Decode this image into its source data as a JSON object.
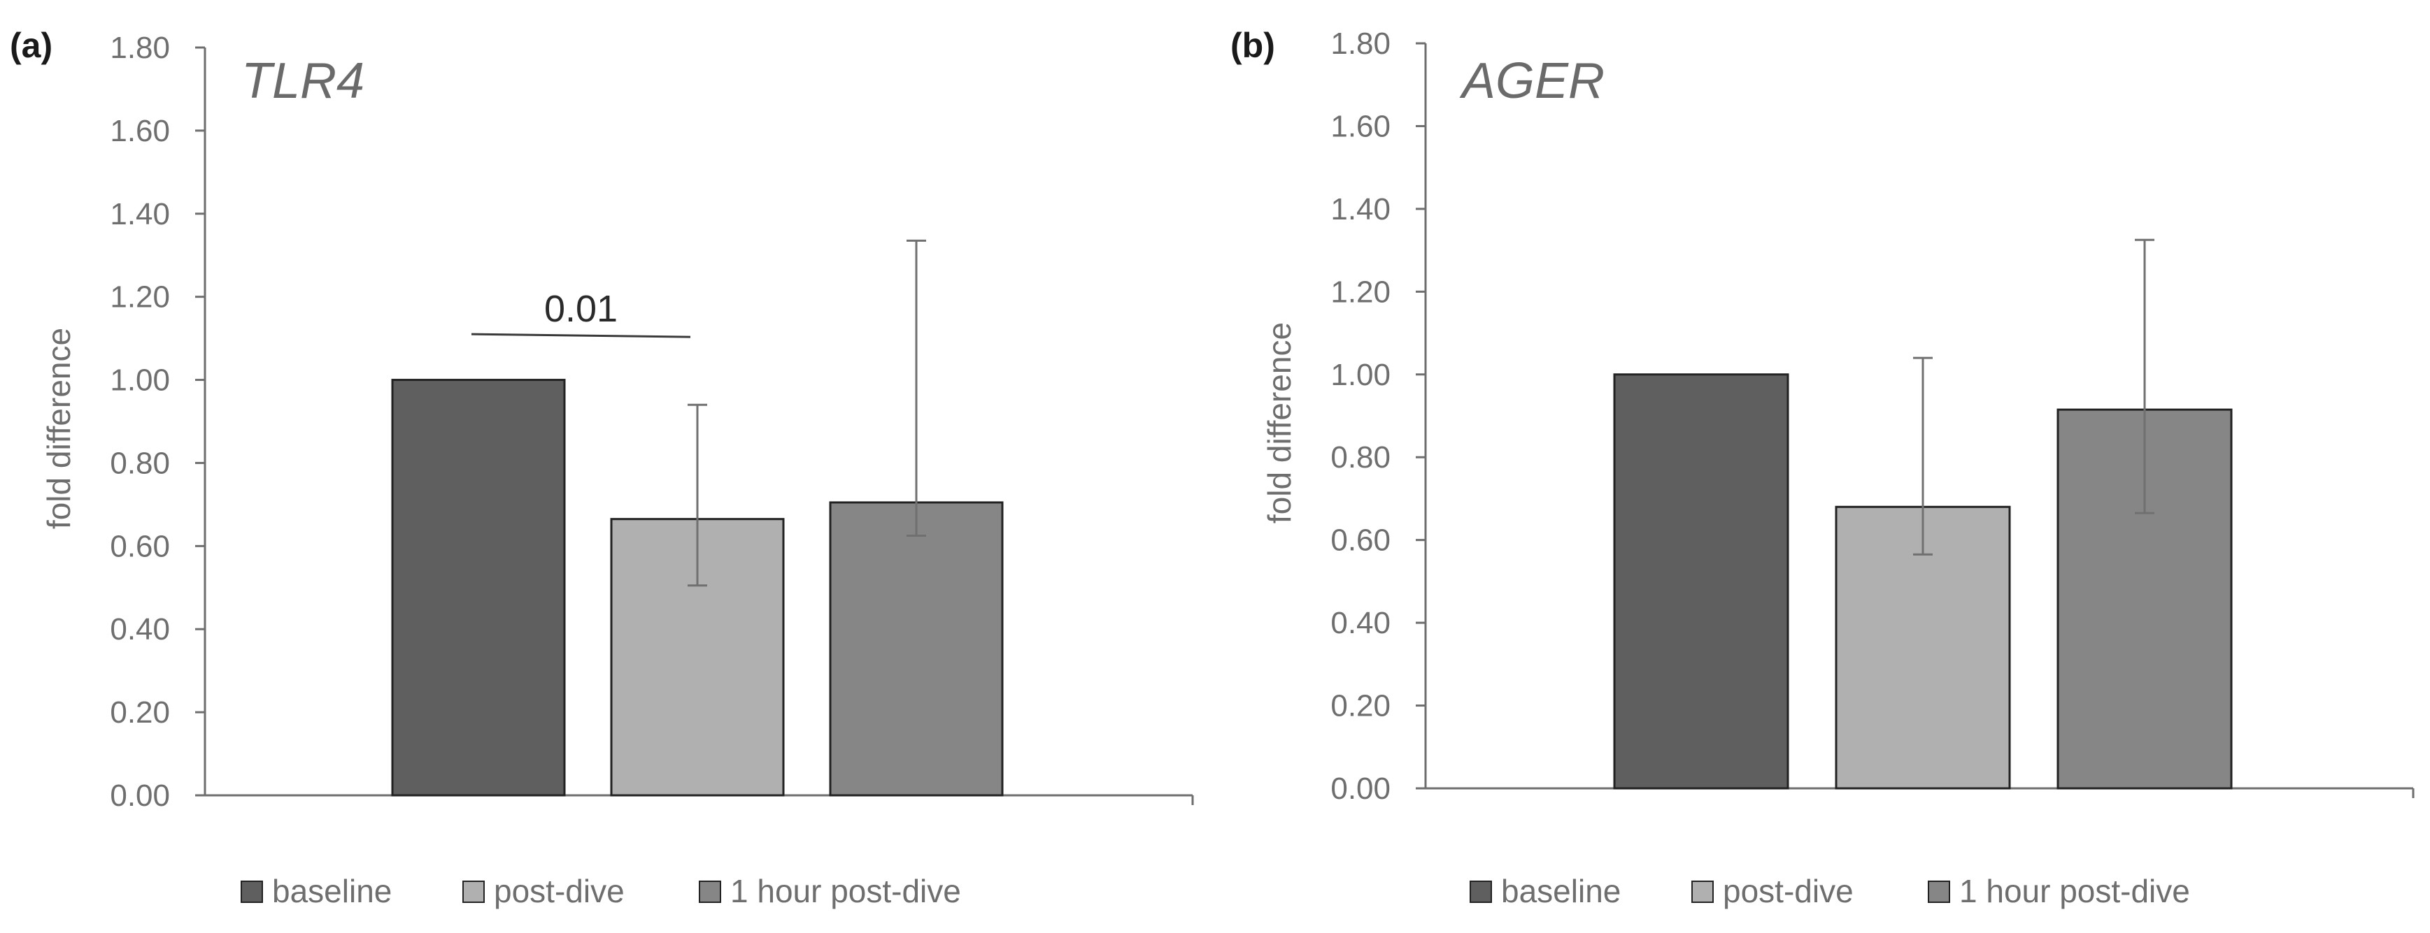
{
  "colors": {
    "series": [
      "#5f5f5f",
      "#b0b0b0",
      "#868686"
    ],
    "bar_stroke": "#222222",
    "axis": "#6e6e6e",
    "error_bar": "#707070"
  },
  "chart_data": [
    {
      "type": "bar",
      "panel_label": "(a)",
      "title": "TLR4",
      "xlabel": "",
      "ylabel": "fold difference",
      "ylim": [
        0,
        1.8
      ],
      "yticks": [
        "0.00",
        "0.20",
        "0.40",
        "0.60",
        "0.80",
        "1.00",
        "1.20",
        "1.40",
        "1.60",
        "1.80"
      ],
      "grid": false,
      "categories": [
        "baseline",
        "post-dive",
        "1 hour post-dive"
      ],
      "values": [
        1.0,
        0.665,
        0.705
      ],
      "error_low": [
        null,
        0.505,
        0.625
      ],
      "error_high": [
        null,
        0.94,
        1.335
      ],
      "annotations": [
        {
          "text": "0.01",
          "from": "baseline",
          "to": "post-dive",
          "y": 1.11
        }
      ],
      "legend": [
        "baseline",
        "post-dive",
        "1 hour post-dive"
      ],
      "legend_position": "bottom"
    },
    {
      "type": "bar",
      "panel_label": "(b)",
      "title": "AGER",
      "xlabel": "",
      "ylabel": "fold difference",
      "ylim": [
        0,
        1.8
      ],
      "yticks": [
        "0.00",
        "0.20",
        "0.40",
        "0.60",
        "0.80",
        "1.00",
        "1.20",
        "1.40",
        "1.60",
        "1.80"
      ],
      "grid": false,
      "categories": [
        "baseline",
        "post-dive",
        "1 hour post-dive"
      ],
      "values": [
        1.0,
        0.68,
        0.915
      ],
      "error_low": [
        null,
        0.565,
        0.665
      ],
      "error_high": [
        null,
        1.04,
        1.325
      ],
      "annotations": [],
      "legend": [
        "baseline",
        "post-dive",
        "1 hour post-dive"
      ],
      "legend_position": "bottom"
    }
  ]
}
